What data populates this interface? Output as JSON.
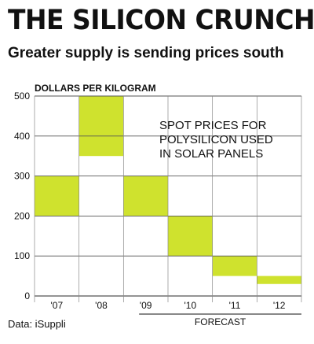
{
  "headline": "THE SILICON CRUNCH",
  "subhead": "Greater supply is sending prices south",
  "source": "Data: iSuppli",
  "chart_data": {
    "type": "bar",
    "title": "SPOT PRICES FOR POLYSILICON USED IN SOLAR PANELS",
    "title_lines": [
      "SPOT PRICES FOR",
      "POLYSILICON USED",
      "IN SOLAR PANELS"
    ],
    "ylabel": "DOLLARS PER KILOGRAM",
    "xlabel": "",
    "categories": [
      "'07",
      "'08",
      "'09",
      "'10",
      "'11",
      "'12"
    ],
    "ranges": [
      {
        "low": 200,
        "high": 300
      },
      {
        "low": 350,
        "high": 500
      },
      {
        "low": 200,
        "high": 300
      },
      {
        "low": 100,
        "high": 200
      },
      {
        "low": 50,
        "high": 100
      },
      {
        "low": 30,
        "high": 50
      }
    ],
    "yticks": [
      0,
      100,
      200,
      300,
      400,
      500
    ],
    "ylim": [
      0,
      500
    ],
    "forecast_label": "FORECAST",
    "forecast_categories": [
      "'09",
      "'10",
      "'11",
      "'12"
    ],
    "bar_color": "#cfe22e",
    "grid": true
  }
}
